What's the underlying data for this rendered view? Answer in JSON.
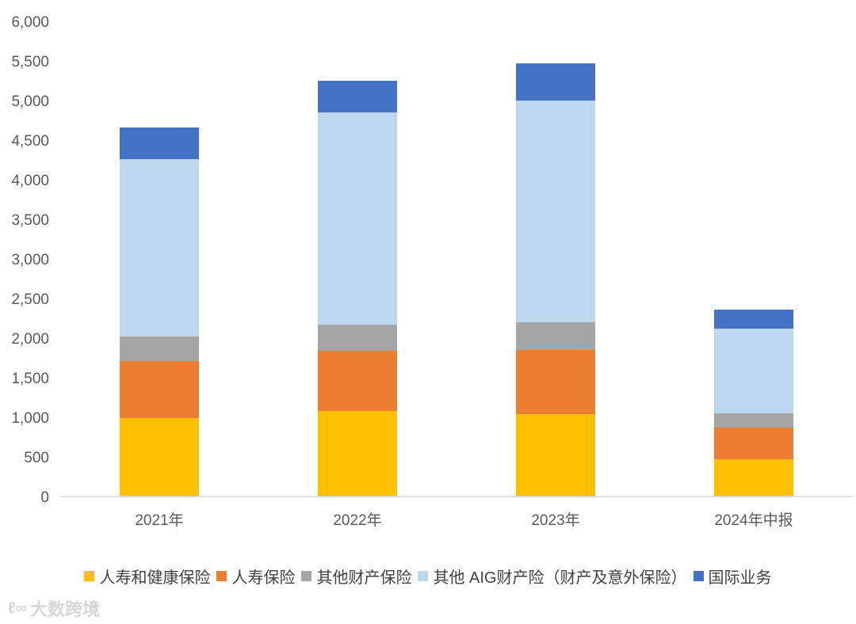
{
  "chart_data": {
    "type": "stacked-bar",
    "categories": [
      "2021年",
      "2022年",
      "2023年",
      "2024年中报"
    ],
    "ylim": [
      0,
      6000
    ],
    "yticks": [
      "0",
      "500",
      "1,000",
      "1,500",
      "2,000",
      "2,500",
      "3,000",
      "3,500",
      "4,000",
      "4,500",
      "5,000",
      "5,500",
      "6,000"
    ],
    "ytick_values": [
      0,
      500,
      1000,
      1500,
      2000,
      2500,
      3000,
      3500,
      4000,
      4500,
      5000,
      5500,
      6000
    ],
    "series": [
      {
        "name": "人寿和健康保险",
        "color": "#FFC000",
        "values": [
          990,
          1080,
          1040,
          470
        ]
      },
      {
        "name": "人寿保险",
        "color": "#ED7D31",
        "values": [
          720,
          760,
          810,
          400
        ]
      },
      {
        "name": "其他财产保险",
        "color": "#A5A5A5",
        "values": [
          310,
          330,
          350,
          180
        ]
      },
      {
        "name": "其他 AIG财产险（财产及意外保险）",
        "color": "#BDD7EE",
        "values": [
          2240,
          2680,
          2800,
          1070
        ]
      },
      {
        "name": "国际业务",
        "color": "#4472C4",
        "values": [
          400,
          400,
          470,
          240
        ]
      }
    ]
  },
  "watermark": {
    "icon": "ℓ∞",
    "text": "大数跨境"
  }
}
